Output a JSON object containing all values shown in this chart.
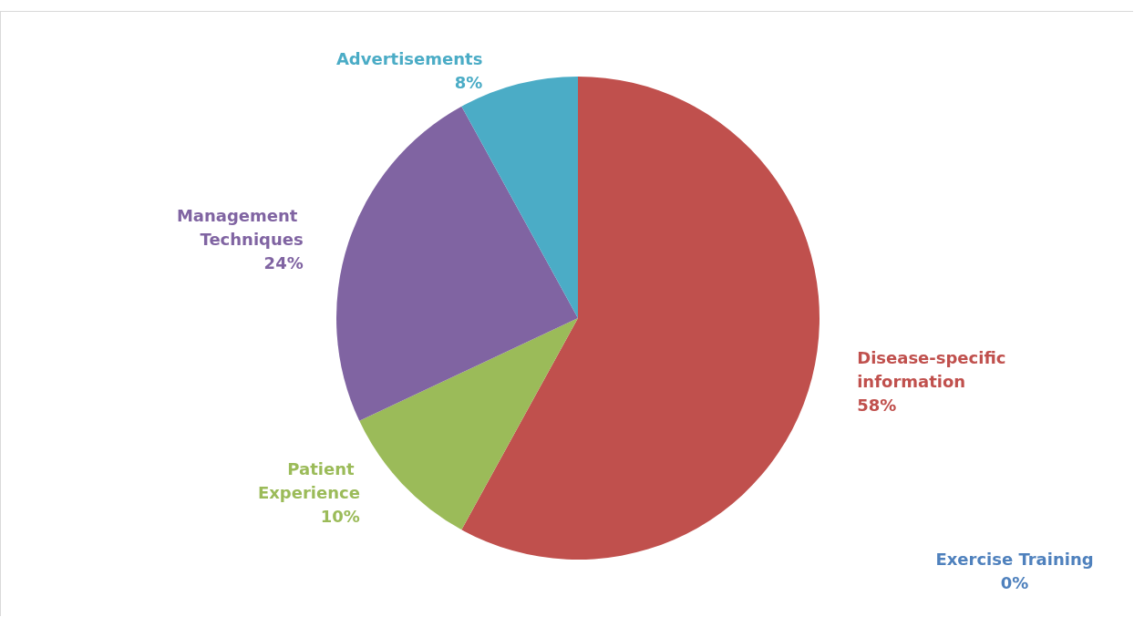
{
  "chart_data": {
    "type": "pie",
    "categories": [
      "Exercise Training",
      "Disease-specific information",
      "Patient Experience",
      "Management Techniques",
      "Advertisements"
    ],
    "values": [
      0,
      58,
      10,
      24,
      8
    ],
    "value_labels": [
      "0%",
      "58%",
      "10%",
      "24%",
      "8%"
    ],
    "colors": [
      "#4f81bd",
      "#c0504d",
      "#9bbb59",
      "#8064a2",
      "#4bacc6"
    ],
    "legend": false
  }
}
